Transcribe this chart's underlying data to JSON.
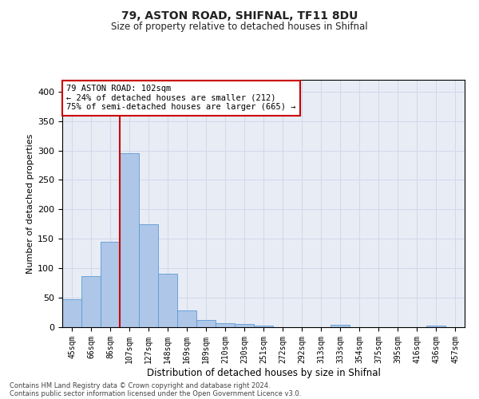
{
  "title1": "79, ASTON ROAD, SHIFNAL, TF11 8DU",
  "title2": "Size of property relative to detached houses in Shifnal",
  "xlabel": "Distribution of detached houses by size in Shifnal",
  "ylabel": "Number of detached properties",
  "bar_labels": [
    "45sqm",
    "66sqm",
    "86sqm",
    "107sqm",
    "127sqm",
    "148sqm",
    "169sqm",
    "189sqm",
    "210sqm",
    "230sqm",
    "251sqm",
    "272sqm",
    "292sqm",
    "313sqm",
    "333sqm",
    "354sqm",
    "375sqm",
    "395sqm",
    "416sqm",
    "436sqm",
    "457sqm"
  ],
  "bar_values": [
    47,
    87,
    145,
    296,
    175,
    91,
    29,
    12,
    7,
    5,
    3,
    0,
    0,
    0,
    4,
    0,
    0,
    0,
    0,
    3,
    0
  ],
  "bar_color": "#aec6e8",
  "bar_edge_color": "#5b9bd5",
  "vline_x": 3,
  "vline_color": "#cc0000",
  "annotation_text": "79 ASTON ROAD: 102sqm\n← 24% of detached houses are smaller (212)\n75% of semi-detached houses are larger (665) →",
  "annotation_box_color": "#ffffff",
  "annotation_border_color": "#cc0000",
  "grid_color": "#d0d8e8",
  "bg_color": "#e8ecf5",
  "ylim": [
    0,
    420
  ],
  "yticks": [
    0,
    50,
    100,
    150,
    200,
    250,
    300,
    350,
    400
  ],
  "footer1": "Contains HM Land Registry data © Crown copyright and database right 2024.",
  "footer2": "Contains public sector information licensed under the Open Government Licence v3.0."
}
